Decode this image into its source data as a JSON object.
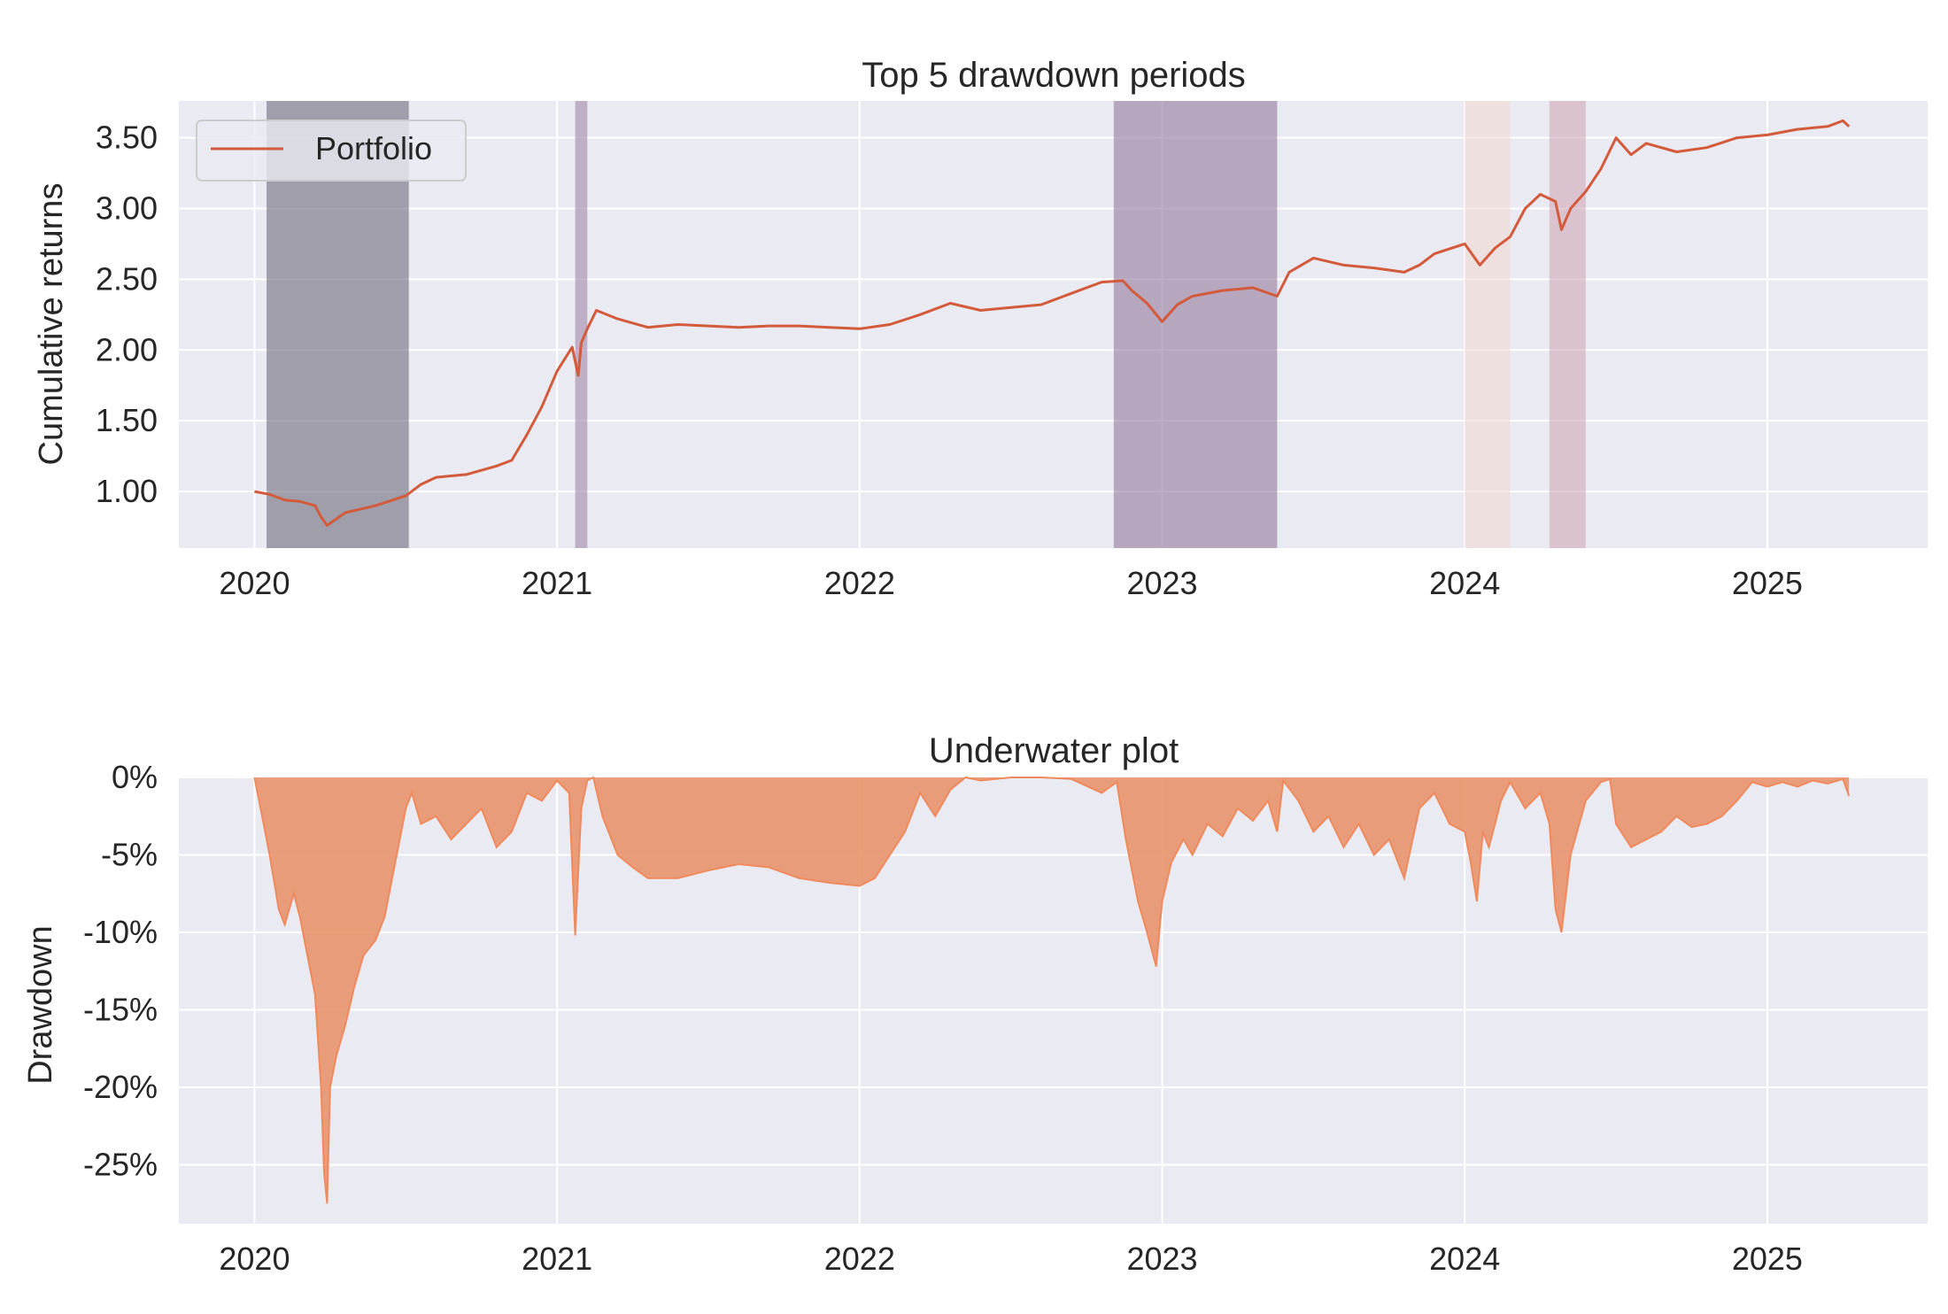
{
  "chart_data": [
    {
      "type": "line",
      "title": "Top 5 drawdown periods",
      "xlabel": "",
      "ylabel": "Cumulative returns",
      "xlim": [
        2019.75,
        2025.53
      ],
      "ylim": [
        0.6,
        3.76
      ],
      "x_ticks": [
        2020,
        2021,
        2022,
        2023,
        2024,
        2025
      ],
      "y_ticks": [
        1.0,
        1.5,
        2.0,
        2.5,
        3.0,
        3.5
      ],
      "y_tick_labels": [
        "1.00",
        "1.50",
        "2.00",
        "2.50",
        "3.00",
        "3.50"
      ],
      "grid": true,
      "legend": {
        "position": "top-left",
        "entries": [
          "Portfolio"
        ]
      },
      "series": [
        {
          "name": "Portfolio",
          "color": "#d35a3a",
          "x": [
            2020.0,
            2020.05,
            2020.1,
            2020.15,
            2020.2,
            2020.22,
            2020.24,
            2020.3,
            2020.4,
            2020.5,
            2020.55,
            2020.6,
            2020.7,
            2020.8,
            2020.85,
            2020.9,
            2020.95,
            2021.0,
            2021.05,
            2021.07,
            2021.08,
            2021.1,
            2021.13,
            2021.2,
            2021.3,
            2021.4,
            2021.5,
            2021.6,
            2021.7,
            2021.8,
            2021.9,
            2022.0,
            2022.1,
            2022.2,
            2022.3,
            2022.4,
            2022.5,
            2022.6,
            2022.7,
            2022.8,
            2022.87,
            2022.9,
            2022.95,
            2023.0,
            2023.05,
            2023.1,
            2023.2,
            2023.3,
            2023.38,
            2023.42,
            2023.5,
            2023.6,
            2023.7,
            2023.8,
            2023.85,
            2023.9,
            2024.0,
            2024.05,
            2024.1,
            2024.15,
            2024.2,
            2024.25,
            2024.3,
            2024.32,
            2024.35,
            2024.4,
            2024.45,
            2024.5,
            2024.55,
            2024.6,
            2024.7,
            2024.8,
            2024.9,
            2025.0,
            2025.1,
            2025.2,
            2025.25,
            2025.27
          ],
          "y": [
            1.0,
            0.98,
            0.94,
            0.93,
            0.9,
            0.82,
            0.76,
            0.85,
            0.9,
            0.97,
            1.05,
            1.1,
            1.12,
            1.18,
            1.22,
            1.4,
            1.6,
            1.85,
            2.02,
            1.82,
            2.05,
            2.15,
            2.28,
            2.22,
            2.16,
            2.18,
            2.17,
            2.16,
            2.17,
            2.17,
            2.16,
            2.15,
            2.18,
            2.25,
            2.33,
            2.28,
            2.3,
            2.32,
            2.4,
            2.48,
            2.49,
            2.42,
            2.33,
            2.2,
            2.32,
            2.38,
            2.42,
            2.44,
            2.38,
            2.55,
            2.65,
            2.6,
            2.58,
            2.55,
            2.6,
            2.68,
            2.75,
            2.6,
            2.72,
            2.8,
            3.0,
            3.1,
            3.05,
            2.85,
            3.0,
            3.12,
            3.28,
            3.5,
            3.38,
            3.46,
            3.4,
            3.43,
            3.5,
            3.52,
            3.56,
            3.58,
            3.62,
            3.58
          ]
        }
      ],
      "drawdown_periods": [
        {
          "start": 2020.04,
          "end": 2020.51,
          "color": "#6e6a7c",
          "opacity": 0.6
        },
        {
          "start": 2021.06,
          "end": 2021.1,
          "color": "#a085a8",
          "opacity": 0.6
        },
        {
          "start": 2022.84,
          "end": 2023.38,
          "color": "#8a6e94",
          "opacity": 0.55
        },
        {
          "start": 2024.0,
          "end": 2024.15,
          "color": "#f2d8d4",
          "opacity": 0.6
        },
        {
          "start": 2024.28,
          "end": 2024.4,
          "color": "#c99aac",
          "opacity": 0.5
        }
      ]
    },
    {
      "type": "area",
      "title": "Underwater plot",
      "xlabel": "",
      "ylabel": "Drawdown",
      "xlim": [
        2019.75,
        2025.53
      ],
      "ylim": [
        -28.8,
        0
      ],
      "x_ticks": [
        2020,
        2021,
        2022,
        2023,
        2024,
        2025
      ],
      "y_ticks": [
        0,
        -5,
        -10,
        -15,
        -20,
        -25
      ],
      "y_tick_labels": [
        "0%",
        "-5%",
        "-10%",
        "-15%",
        "-20%",
        "-25%"
      ],
      "grid": true,
      "series": [
        {
          "fill_color": "#e8936b",
          "line_color": "#f08a5d",
          "x": [
            2020.0,
            2020.02,
            2020.05,
            2020.08,
            2020.1,
            2020.13,
            2020.15,
            2020.17,
            2020.2,
            2020.22,
            2020.23,
            2020.24,
            2020.25,
            2020.27,
            2020.3,
            2020.33,
            2020.36,
            2020.4,
            2020.43,
            2020.46,
            2020.5,
            2020.52,
            2020.55,
            2020.6,
            2020.65,
            2020.7,
            2020.75,
            2020.8,
            2020.85,
            2020.9,
            2020.95,
            2021.0,
            2021.04,
            2021.06,
            2021.08,
            2021.1,
            2021.12,
            2021.15,
            2021.2,
            2021.25,
            2021.3,
            2021.4,
            2021.5,
            2021.6,
            2021.7,
            2021.8,
            2021.9,
            2022.0,
            2022.05,
            2022.1,
            2022.15,
            2022.2,
            2022.25,
            2022.3,
            2022.35,
            2022.4,
            2022.5,
            2022.6,
            2022.7,
            2022.8,
            2022.85,
            2022.88,
            2022.92,
            2022.95,
            2022.98,
            2023.0,
            2023.03,
            2023.07,
            2023.1,
            2023.15,
            2023.2,
            2023.25,
            2023.3,
            2023.35,
            2023.38,
            2023.4,
            2023.45,
            2023.5,
            2023.55,
            2023.6,
            2023.65,
            2023.7,
            2023.75,
            2023.8,
            2023.85,
            2023.9,
            2023.95,
            2024.0,
            2024.02,
            2024.04,
            2024.06,
            2024.08,
            2024.1,
            2024.12,
            2024.15,
            2024.2,
            2024.25,
            2024.28,
            2024.3,
            2024.32,
            2024.35,
            2024.4,
            2024.45,
            2024.48,
            2024.5,
            2024.55,
            2024.6,
            2024.65,
            2024.7,
            2024.75,
            2024.8,
            2024.85,
            2024.9,
            2024.95,
            2025.0,
            2025.05,
            2025.1,
            2025.15,
            2025.2,
            2025.25,
            2025.27
          ],
          "y": [
            0,
            -2.0,
            -5.0,
            -8.5,
            -9.5,
            -7.5,
            -9.0,
            -11.0,
            -14.0,
            -20.0,
            -25.5,
            -27.5,
            -20.0,
            -18.0,
            -16.0,
            -13.5,
            -11.5,
            -10.5,
            -9.0,
            -6.0,
            -2.0,
            -1.0,
            -3.0,
            -2.5,
            -4.0,
            -3.0,
            -2.0,
            -4.5,
            -3.5,
            -1.0,
            -1.5,
            -0.2,
            -1.0,
            -10.2,
            -2.0,
            -0.2,
            0,
            -2.5,
            -5.0,
            -5.8,
            -6.5,
            -6.5,
            -6.0,
            -5.6,
            -5.8,
            -6.5,
            -6.8,
            -7.0,
            -6.5,
            -5.0,
            -3.5,
            -1.0,
            -2.5,
            -0.8,
            0,
            -0.2,
            0,
            0,
            -0.1,
            -1.0,
            -0.3,
            -4.0,
            -8.0,
            -10.0,
            -12.2,
            -8.0,
            -5.5,
            -4.0,
            -5.0,
            -3.0,
            -3.8,
            -2.0,
            -2.8,
            -1.5,
            -3.5,
            -0.2,
            -1.5,
            -3.5,
            -2.5,
            -4.5,
            -3.0,
            -5.0,
            -4.0,
            -6.5,
            -2.0,
            -1.0,
            -3.0,
            -3.5,
            -5.5,
            -8.0,
            -3.5,
            -4.5,
            -3.0,
            -1.5,
            -0.3,
            -2.0,
            -1.0,
            -3.0,
            -8.5,
            -10.0,
            -5.0,
            -1.5,
            -0.3,
            -0.1,
            -3.0,
            -4.5,
            -4.0,
            -3.5,
            -2.5,
            -3.2,
            -3.0,
            -2.5,
            -1.5,
            -0.3,
            -0.6,
            -0.3,
            -0.6,
            -0.2,
            -0.4,
            -0.1,
            -1.2
          ]
        }
      ]
    }
  ]
}
